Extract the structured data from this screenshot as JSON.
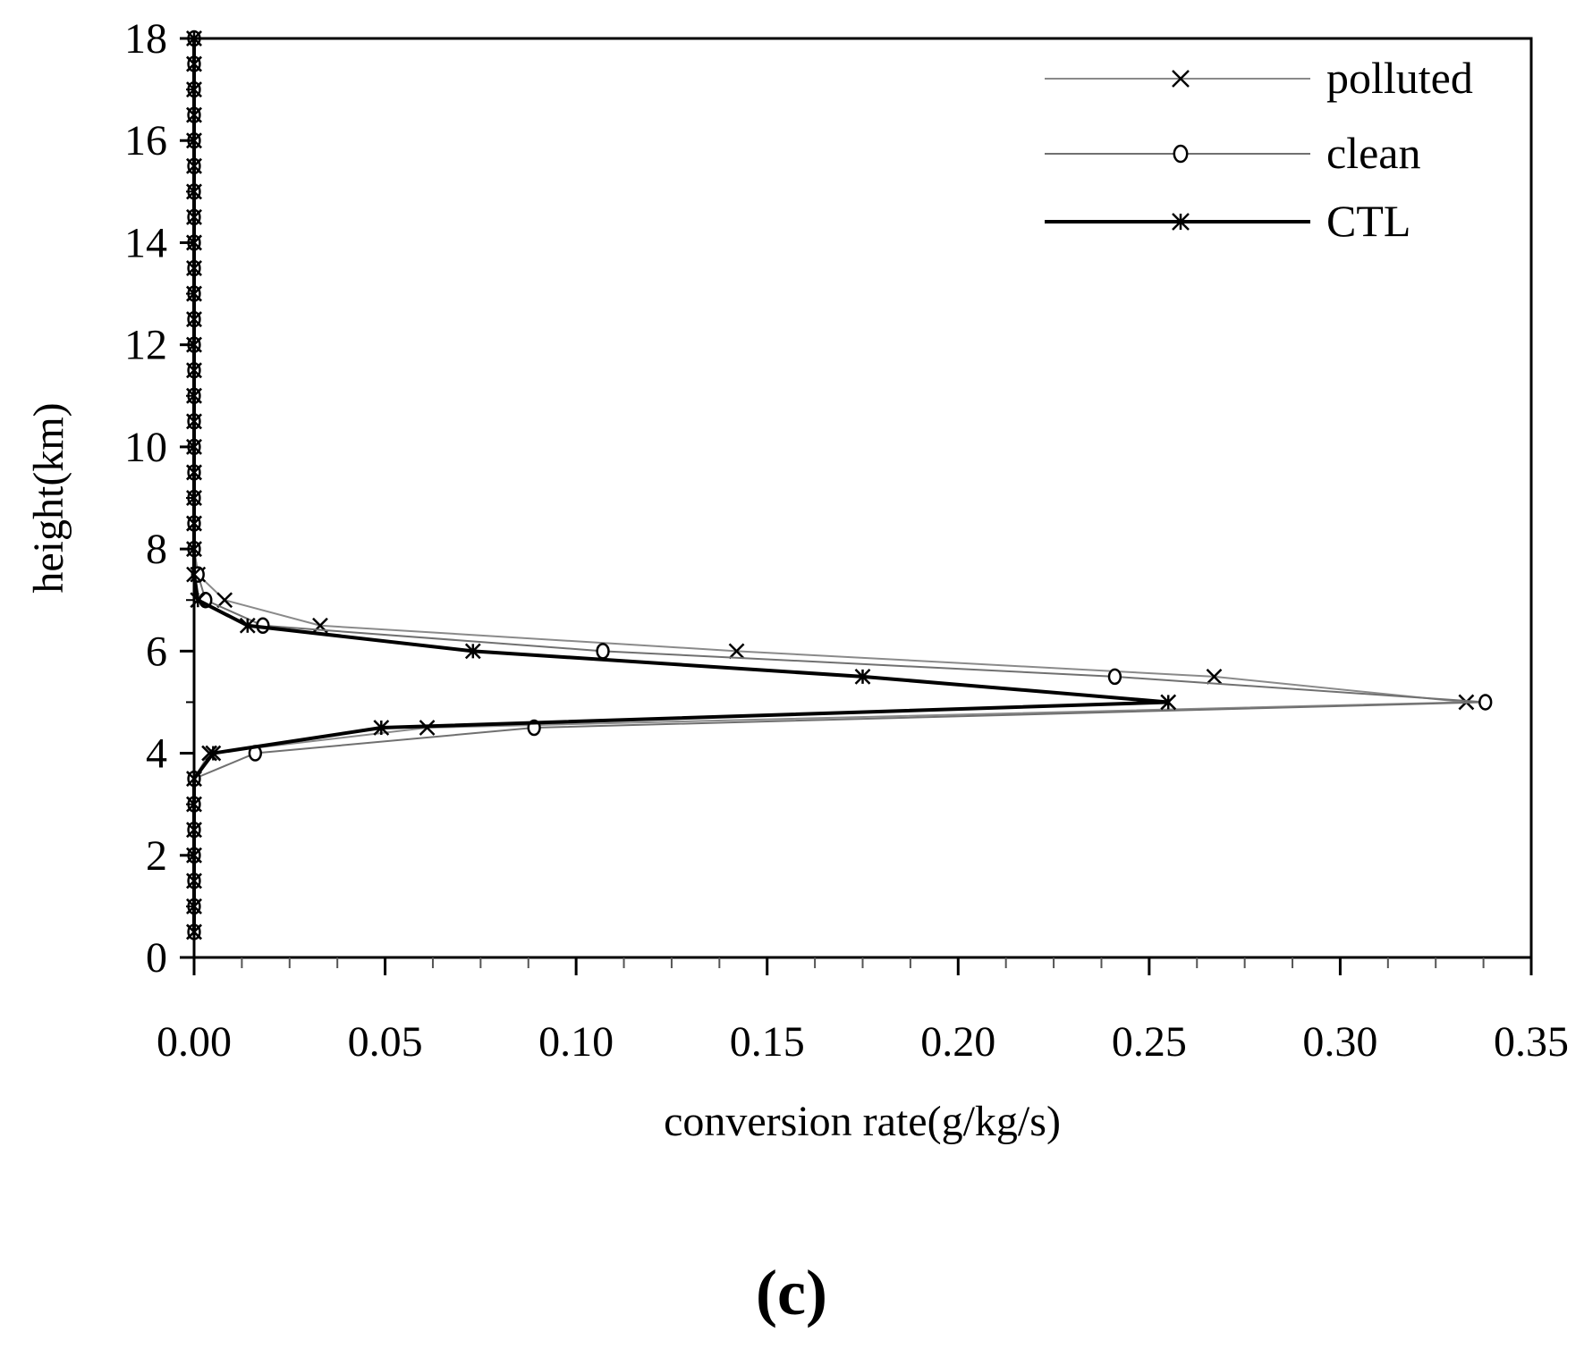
{
  "chart_data": {
    "type": "line",
    "title": "",
    "panel_label": "(c)",
    "xlabel": "conversion rate(g/kg/s)",
    "ylabel": "height(km)",
    "xlim": [
      0,
      0.35
    ],
    "ylim": [
      0,
      18
    ],
    "x_ticks": [
      0.0,
      0.05,
      0.1,
      0.15,
      0.2,
      0.25,
      0.3,
      0.35
    ],
    "x_tick_labels": [
      "0.00",
      "0.05",
      "0.10",
      "0.15",
      "0.20",
      "0.25",
      "0.30",
      "0.35"
    ],
    "y_ticks": [
      0,
      2,
      4,
      6,
      8,
      10,
      12,
      14,
      16,
      18
    ],
    "y_tick_labels": [
      "0",
      "2",
      "4",
      "6",
      "8",
      "10",
      "12",
      "14",
      "16",
      "18"
    ],
    "legend_position": "top-right",
    "grid": false,
    "series": [
      {
        "name": "polluted",
        "marker": "x",
        "color": "#8a8a8a",
        "points": [
          [
            0,
            0.5
          ],
          [
            0,
            1
          ],
          [
            0,
            1.5
          ],
          [
            0,
            2
          ],
          [
            0,
            2.5
          ],
          [
            0,
            3
          ],
          [
            0,
            3.5
          ],
          [
            0.004,
            4
          ],
          [
            0.061,
            4.5
          ],
          [
            0.333,
            5
          ],
          [
            0.267,
            5.5
          ],
          [
            0.142,
            6
          ],
          [
            0.033,
            6.5
          ],
          [
            0.008,
            7
          ],
          [
            0.001,
            7.5
          ],
          [
            0,
            8
          ],
          [
            0,
            8.5
          ],
          [
            0,
            9
          ],
          [
            0,
            9.5
          ],
          [
            0,
            10
          ],
          [
            0,
            10.5
          ],
          [
            0,
            11
          ],
          [
            0,
            11.5
          ],
          [
            0,
            12
          ],
          [
            0,
            12.5
          ],
          [
            0,
            13
          ],
          [
            0,
            13.5
          ],
          [
            0,
            14
          ],
          [
            0,
            14.5
          ],
          [
            0,
            15
          ],
          [
            0,
            15.5
          ],
          [
            0,
            16
          ],
          [
            0,
            16.5
          ],
          [
            0,
            17
          ],
          [
            0,
            17.5
          ],
          [
            0,
            18
          ]
        ]
      },
      {
        "name": "clean",
        "marker": "o",
        "color": "#707070",
        "points": [
          [
            0,
            0.5
          ],
          [
            0,
            1
          ],
          [
            0,
            1.5
          ],
          [
            0,
            2
          ],
          [
            0,
            2.5
          ],
          [
            0,
            3
          ],
          [
            0,
            3.5
          ],
          [
            0.016,
            4
          ],
          [
            0.089,
            4.5
          ],
          [
            0.338,
            5
          ],
          [
            0.241,
            5.5
          ],
          [
            0.107,
            6
          ],
          [
            0.018,
            6.5
          ],
          [
            0.003,
            7
          ],
          [
            0.001,
            7.5
          ],
          [
            0,
            8
          ],
          [
            0,
            8.5
          ],
          [
            0,
            9
          ],
          [
            0,
            9.5
          ],
          [
            0,
            10
          ],
          [
            0,
            10.5
          ],
          [
            0,
            11
          ],
          [
            0,
            11.5
          ],
          [
            0,
            12
          ],
          [
            0,
            12.5
          ],
          [
            0,
            13
          ],
          [
            0,
            13.5
          ],
          [
            0,
            14
          ],
          [
            0,
            14.5
          ],
          [
            0,
            15
          ],
          [
            0,
            15.5
          ],
          [
            0,
            16
          ],
          [
            0,
            16.5
          ],
          [
            0,
            17
          ],
          [
            0,
            17.5
          ],
          [
            0,
            18
          ]
        ]
      },
      {
        "name": "CTL",
        "marker": "*",
        "color": "#000000",
        "points": [
          [
            0,
            0.5
          ],
          [
            0,
            1
          ],
          [
            0,
            1.5
          ],
          [
            0,
            2
          ],
          [
            0,
            2.5
          ],
          [
            0,
            3
          ],
          [
            0,
            3.5
          ],
          [
            0.005,
            4
          ],
          [
            0.049,
            4.5
          ],
          [
            0.255,
            5
          ],
          [
            0.175,
            5.5
          ],
          [
            0.073,
            6
          ],
          [
            0.014,
            6.5
          ],
          [
            0.001,
            7
          ],
          [
            0,
            7.5
          ],
          [
            0,
            8
          ],
          [
            0,
            8.5
          ],
          [
            0,
            9
          ],
          [
            0,
            9.5
          ],
          [
            0,
            10
          ],
          [
            0,
            10.5
          ],
          [
            0,
            11
          ],
          [
            0,
            11.5
          ],
          [
            0,
            12
          ],
          [
            0,
            12.5
          ],
          [
            0,
            13
          ],
          [
            0,
            13.5
          ],
          [
            0,
            14
          ],
          [
            0,
            14.5
          ],
          [
            0,
            15
          ],
          [
            0,
            15.5
          ],
          [
            0,
            16
          ],
          [
            0,
            16.5
          ],
          [
            0,
            17
          ],
          [
            0,
            17.5
          ],
          [
            0,
            18
          ]
        ]
      }
    ]
  }
}
